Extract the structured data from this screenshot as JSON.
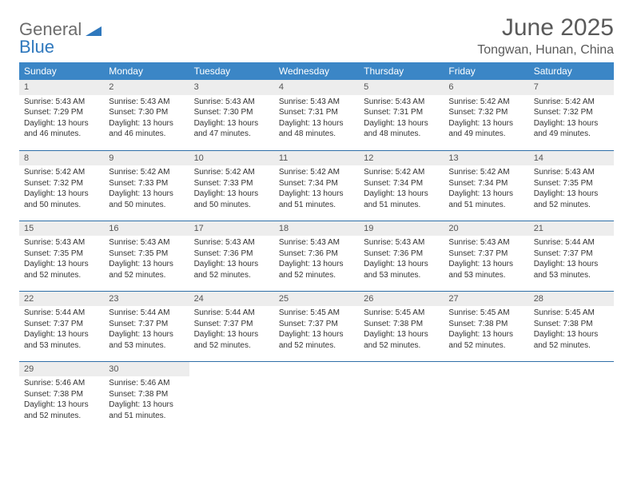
{
  "logo": {
    "text1": "General",
    "text2": "Blue"
  },
  "title": "June 2025",
  "location": "Tongwan, Hunan, China",
  "colors": {
    "header_bg": "#3b86c6",
    "header_text": "#ffffff",
    "row_divider": "#2f6fa8",
    "daynum_bg": "#ededed",
    "body_text": "#333333",
    "title_text": "#5a5a5a"
  },
  "fonts": {
    "title_pt": 30,
    "location_pt": 16,
    "th_pt": 12,
    "cell_pt": 10
  },
  "weekdays": [
    "Sunday",
    "Monday",
    "Tuesday",
    "Wednesday",
    "Thursday",
    "Friday",
    "Saturday"
  ],
  "weeks": [
    [
      {
        "day": "1",
        "sunrise": "Sunrise: 5:43 AM",
        "sunset": "Sunset: 7:29 PM",
        "daylight": "Daylight: 13 hours and 46 minutes."
      },
      {
        "day": "2",
        "sunrise": "Sunrise: 5:43 AM",
        "sunset": "Sunset: 7:30 PM",
        "daylight": "Daylight: 13 hours and 46 minutes."
      },
      {
        "day": "3",
        "sunrise": "Sunrise: 5:43 AM",
        "sunset": "Sunset: 7:30 PM",
        "daylight": "Daylight: 13 hours and 47 minutes."
      },
      {
        "day": "4",
        "sunrise": "Sunrise: 5:43 AM",
        "sunset": "Sunset: 7:31 PM",
        "daylight": "Daylight: 13 hours and 48 minutes."
      },
      {
        "day": "5",
        "sunrise": "Sunrise: 5:43 AM",
        "sunset": "Sunset: 7:31 PM",
        "daylight": "Daylight: 13 hours and 48 minutes."
      },
      {
        "day": "6",
        "sunrise": "Sunrise: 5:42 AM",
        "sunset": "Sunset: 7:32 PM",
        "daylight": "Daylight: 13 hours and 49 minutes."
      },
      {
        "day": "7",
        "sunrise": "Sunrise: 5:42 AM",
        "sunset": "Sunset: 7:32 PM",
        "daylight": "Daylight: 13 hours and 49 minutes."
      }
    ],
    [
      {
        "day": "8",
        "sunrise": "Sunrise: 5:42 AM",
        "sunset": "Sunset: 7:32 PM",
        "daylight": "Daylight: 13 hours and 50 minutes."
      },
      {
        "day": "9",
        "sunrise": "Sunrise: 5:42 AM",
        "sunset": "Sunset: 7:33 PM",
        "daylight": "Daylight: 13 hours and 50 minutes."
      },
      {
        "day": "10",
        "sunrise": "Sunrise: 5:42 AM",
        "sunset": "Sunset: 7:33 PM",
        "daylight": "Daylight: 13 hours and 50 minutes."
      },
      {
        "day": "11",
        "sunrise": "Sunrise: 5:42 AM",
        "sunset": "Sunset: 7:34 PM",
        "daylight": "Daylight: 13 hours and 51 minutes."
      },
      {
        "day": "12",
        "sunrise": "Sunrise: 5:42 AM",
        "sunset": "Sunset: 7:34 PM",
        "daylight": "Daylight: 13 hours and 51 minutes."
      },
      {
        "day": "13",
        "sunrise": "Sunrise: 5:42 AM",
        "sunset": "Sunset: 7:34 PM",
        "daylight": "Daylight: 13 hours and 51 minutes."
      },
      {
        "day": "14",
        "sunrise": "Sunrise: 5:43 AM",
        "sunset": "Sunset: 7:35 PM",
        "daylight": "Daylight: 13 hours and 52 minutes."
      }
    ],
    [
      {
        "day": "15",
        "sunrise": "Sunrise: 5:43 AM",
        "sunset": "Sunset: 7:35 PM",
        "daylight": "Daylight: 13 hours and 52 minutes."
      },
      {
        "day": "16",
        "sunrise": "Sunrise: 5:43 AM",
        "sunset": "Sunset: 7:35 PM",
        "daylight": "Daylight: 13 hours and 52 minutes."
      },
      {
        "day": "17",
        "sunrise": "Sunrise: 5:43 AM",
        "sunset": "Sunset: 7:36 PM",
        "daylight": "Daylight: 13 hours and 52 minutes."
      },
      {
        "day": "18",
        "sunrise": "Sunrise: 5:43 AM",
        "sunset": "Sunset: 7:36 PM",
        "daylight": "Daylight: 13 hours and 52 minutes."
      },
      {
        "day": "19",
        "sunrise": "Sunrise: 5:43 AM",
        "sunset": "Sunset: 7:36 PM",
        "daylight": "Daylight: 13 hours and 53 minutes."
      },
      {
        "day": "20",
        "sunrise": "Sunrise: 5:43 AM",
        "sunset": "Sunset: 7:37 PM",
        "daylight": "Daylight: 13 hours and 53 minutes."
      },
      {
        "day": "21",
        "sunrise": "Sunrise: 5:44 AM",
        "sunset": "Sunset: 7:37 PM",
        "daylight": "Daylight: 13 hours and 53 minutes."
      }
    ],
    [
      {
        "day": "22",
        "sunrise": "Sunrise: 5:44 AM",
        "sunset": "Sunset: 7:37 PM",
        "daylight": "Daylight: 13 hours and 53 minutes."
      },
      {
        "day": "23",
        "sunrise": "Sunrise: 5:44 AM",
        "sunset": "Sunset: 7:37 PM",
        "daylight": "Daylight: 13 hours and 53 minutes."
      },
      {
        "day": "24",
        "sunrise": "Sunrise: 5:44 AM",
        "sunset": "Sunset: 7:37 PM",
        "daylight": "Daylight: 13 hours and 52 minutes."
      },
      {
        "day": "25",
        "sunrise": "Sunrise: 5:45 AM",
        "sunset": "Sunset: 7:37 PM",
        "daylight": "Daylight: 13 hours and 52 minutes."
      },
      {
        "day": "26",
        "sunrise": "Sunrise: 5:45 AM",
        "sunset": "Sunset: 7:38 PM",
        "daylight": "Daylight: 13 hours and 52 minutes."
      },
      {
        "day": "27",
        "sunrise": "Sunrise: 5:45 AM",
        "sunset": "Sunset: 7:38 PM",
        "daylight": "Daylight: 13 hours and 52 minutes."
      },
      {
        "day": "28",
        "sunrise": "Sunrise: 5:45 AM",
        "sunset": "Sunset: 7:38 PM",
        "daylight": "Daylight: 13 hours and 52 minutes."
      }
    ],
    [
      {
        "day": "29",
        "sunrise": "Sunrise: 5:46 AM",
        "sunset": "Sunset: 7:38 PM",
        "daylight": "Daylight: 13 hours and 52 minutes."
      },
      {
        "day": "30",
        "sunrise": "Sunrise: 5:46 AM",
        "sunset": "Sunset: 7:38 PM",
        "daylight": "Daylight: 13 hours and 51 minutes."
      },
      null,
      null,
      null,
      null,
      null
    ]
  ]
}
